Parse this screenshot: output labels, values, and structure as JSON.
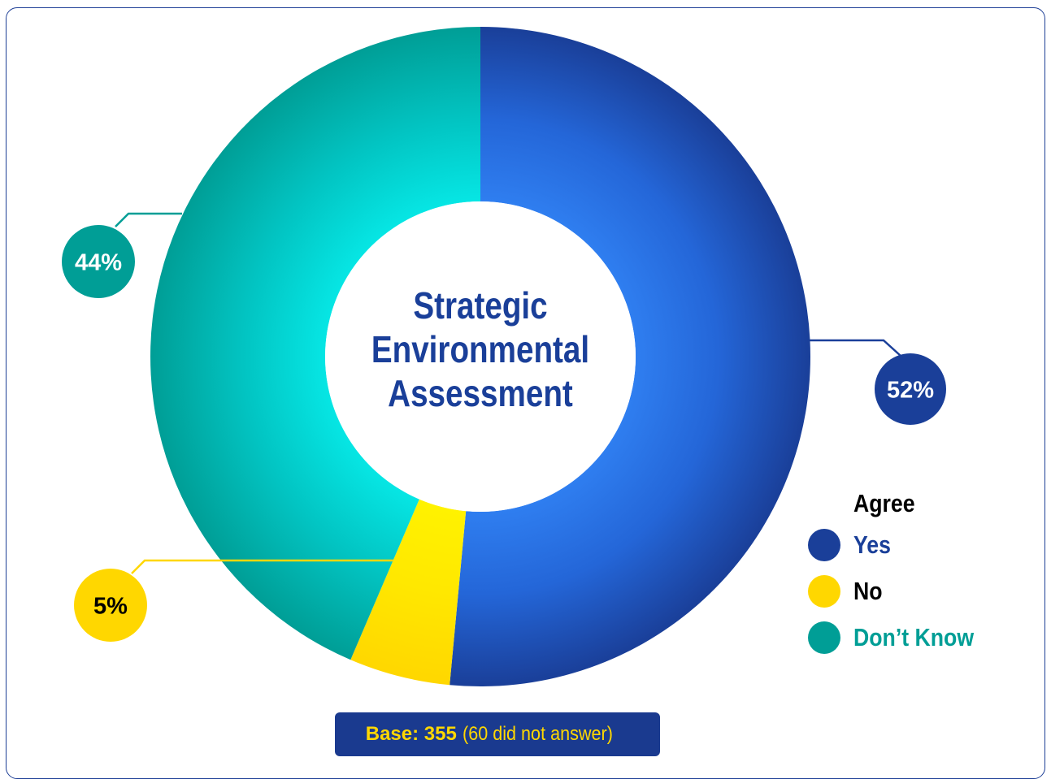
{
  "chart_data": {
    "type": "pie",
    "title": "Strategic Environmental Assessment",
    "title_lines": [
      "Strategic",
      "Environmental",
      "Assessment"
    ],
    "legend_title": "Agree",
    "legend_position": "bottom-right",
    "series": [
      {
        "name": "Yes",
        "value": 52,
        "label": "52%",
        "color": "#1a3f99",
        "label_color": "#ffffff"
      },
      {
        "name": "No",
        "value": 5,
        "label": "5%",
        "color": "#ffd700",
        "label_color": "#000000"
      },
      {
        "name": "Don’t Know",
        "value": 44,
        "label": "44%",
        "color": "#009e96",
        "label_color": "#ffffff"
      }
    ],
    "legend": [
      {
        "name": "Yes",
        "color": "#1a3f99",
        "text_color": "#1a3f99"
      },
      {
        "name": "No",
        "color": "#ffd700",
        "text_color": "#000000"
      },
      {
        "name": "Don’t Know",
        "color": "#009e96",
        "text_color": "#009e96"
      }
    ],
    "base": {
      "label": "Base: 355",
      "note": "(60 did not answer)"
    }
  }
}
